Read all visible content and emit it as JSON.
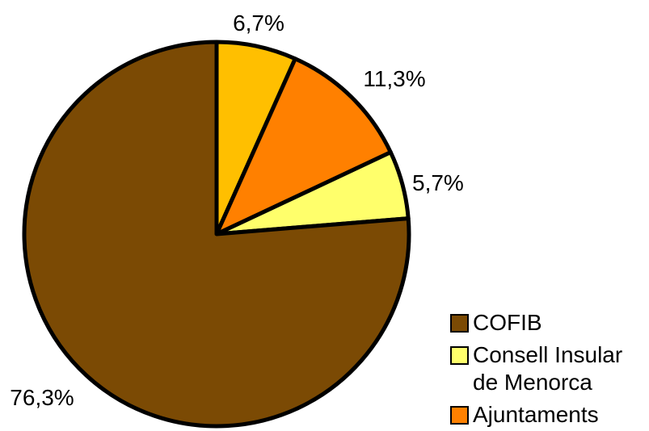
{
  "chart_data": {
    "type": "pie",
    "start_angle_deg": 0,
    "direction": "clockwise",
    "slices": [
      {
        "label": "",
        "value": 6.7,
        "value_label": "6,7%",
        "color": "#ffbf00"
      },
      {
        "label": "",
        "value": 11.3,
        "value_label": "11,3%",
        "color": "#ff8000"
      },
      {
        "label": "",
        "value": 5.7,
        "value_label": "5,7%",
        "color": "#ffff6b"
      },
      {
        "label": "COFIB",
        "value": 76.3,
        "value_label": "76,3%",
        "color": "#7b4a04"
      }
    ],
    "legend": {
      "placement": "bottom-right",
      "entries": [
        {
          "lines": [
            "COFIB"
          ],
          "color": "#7b4a04"
        },
        {
          "lines": [
            "Consell Insular",
            "de Menorca"
          ],
          "color": "#ffff6b"
        },
        {
          "lines": [
            "Ajuntaments"
          ],
          "color": "#ff8000"
        }
      ]
    }
  }
}
